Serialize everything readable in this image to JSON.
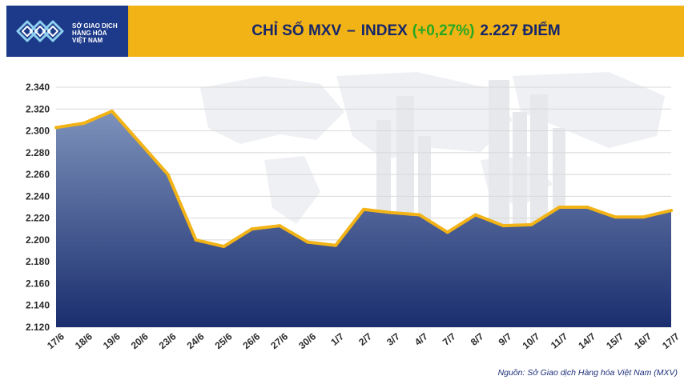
{
  "header": {
    "logo_lines": [
      "SỞ GIAO DỊCH",
      "HÀNG HÓA",
      "VIỆT NAM"
    ],
    "title_main": "CHỈ SỐ MXV",
    "title_dash": "–",
    "title_index": "INDEX",
    "title_change": "(+0,27%)",
    "title_value": "2.227 ĐIỂM",
    "colors": {
      "bar": "#f2b316",
      "logo_bg": "#1d3a8a",
      "title": "#16266a",
      "change": "#27a822"
    }
  },
  "chart_data": {
    "type": "area",
    "title": "CHỈ SỐ MXV – INDEX (+0,27%) 2.227 ĐIỂM",
    "categories": [
      "17/6",
      "18/6",
      "19/6",
      "20/6",
      "23/6",
      "24/6",
      "25/6",
      "26/6",
      "27/6",
      "30/6",
      "1/7",
      "2/7",
      "3/7",
      "4/7",
      "7/7",
      "8/7",
      "9/7",
      "10/7",
      "11/7",
      "14/7",
      "15/7",
      "16/7",
      "17/7"
    ],
    "values": [
      2303,
      2307,
      2318,
      2289,
      2260,
      2200,
      2194,
      2210,
      2213,
      2198,
      2195,
      2228,
      2225,
      2223,
      2207,
      2223,
      2213,
      2214,
      2230,
      2230,
      2221,
      2221,
      2227
    ],
    "ylim": [
      2120,
      2340
    ],
    "yticks": [
      "2.120",
      "2.140",
      "2.160",
      "2.180",
      "2.200",
      "2.220",
      "2.240",
      "2.260",
      "2.280",
      "2.300",
      "2.320",
      "2.340"
    ],
    "ytick_values": [
      2120,
      2140,
      2160,
      2180,
      2200,
      2220,
      2240,
      2260,
      2280,
      2300,
      2320,
      2340
    ],
    "xlabel": "",
    "ylabel": "",
    "grid": true,
    "colors": {
      "line": "#f2b316",
      "area_top": "#7d92bb",
      "area_bottom": "#1a2d6e",
      "grid": "#d8d8d8",
      "tick_text": "#2a2a2a"
    }
  },
  "source": "Nguồn: Sở Giao dịch Hàng hóa Việt Nam (MXV)"
}
